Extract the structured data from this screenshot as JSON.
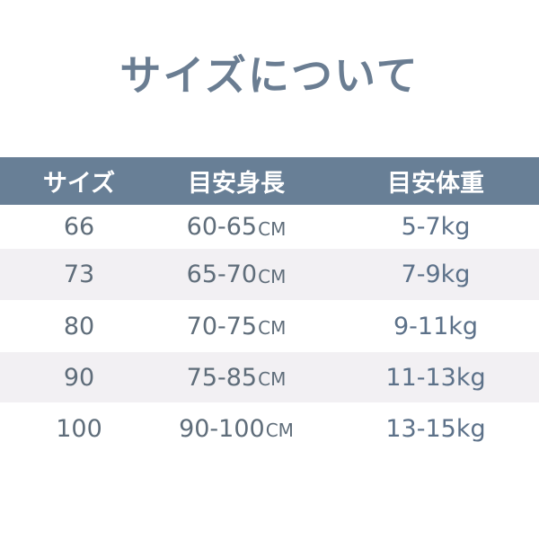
{
  "title": "サイズについて",
  "table": {
    "headers": [
      "サイズ",
      "目安身長",
      "目安体重"
    ],
    "height_unit": "CM",
    "rows": [
      {
        "size": "66",
        "height": "60-65",
        "weight": "5-7kg"
      },
      {
        "size": "73",
        "height": "65-70",
        "weight": "7-9kg"
      },
      {
        "size": "80",
        "height": "70-75",
        "weight": "9-11kg"
      },
      {
        "size": "90",
        "height": "75-85",
        "weight": "11-13kg"
      },
      {
        "size": "100",
        "height": "90-100",
        "weight": "13-15kg"
      }
    ]
  },
  "colors": {
    "header_bg": "#687f96",
    "title": "#6a7d92",
    "alt_row": "#f2f0f3",
    "text": "#5f6d7a"
  }
}
